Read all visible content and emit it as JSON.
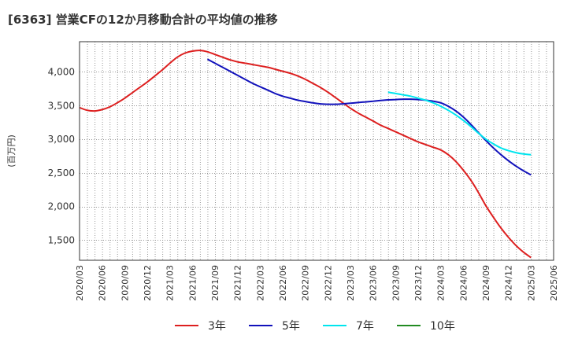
{
  "chart_data": {
    "type": "line",
    "title": "[6363]  営業CFの12か月移動合計の平均値の推移",
    "ylabel": "(百万円)",
    "xlabel": "",
    "ylim": [
      1200,
      4450
    ],
    "yticks": [
      1500,
      2000,
      2500,
      3000,
      3500,
      4000
    ],
    "ytick_labels": [
      "1,500",
      "2,000",
      "2,500",
      "3,000",
      "3,500",
      "4,000"
    ],
    "x_range": [
      "2020-03",
      "2025-06"
    ],
    "x_tick_labels": [
      "2020/03",
      "2020/06",
      "2020/09",
      "2020/12",
      "2021/03",
      "2021/06",
      "2021/09",
      "2021/12",
      "2022/03",
      "2022/06",
      "2022/09",
      "2022/12",
      "2023/03",
      "2023/06",
      "2023/09",
      "2023/12",
      "2024/03",
      "2024/06",
      "2024/09",
      "2024/12",
      "2025/03",
      "2025/06"
    ],
    "grid": true,
    "legend_position": "bottom",
    "series": [
      {
        "name": "3年",
        "color": "#dd1f1f",
        "points": [
          [
            "2020-03",
            3470
          ],
          [
            "2020-04",
            3430
          ],
          [
            "2020-05",
            3420
          ],
          [
            "2020-06",
            3440
          ],
          [
            "2020-07",
            3480
          ],
          [
            "2020-08",
            3540
          ],
          [
            "2020-09",
            3610
          ],
          [
            "2020-10",
            3690
          ],
          [
            "2020-11",
            3770
          ],
          [
            "2020-12",
            3850
          ],
          [
            "2021-01",
            3940
          ],
          [
            "2021-02",
            4030
          ],
          [
            "2021-03",
            4130
          ],
          [
            "2021-04",
            4220
          ],
          [
            "2021-05",
            4280
          ],
          [
            "2021-06",
            4310
          ],
          [
            "2021-07",
            4320
          ],
          [
            "2021-08",
            4300
          ],
          [
            "2021-09",
            4260
          ],
          [
            "2021-10",
            4220
          ],
          [
            "2021-11",
            4180
          ],
          [
            "2021-12",
            4150
          ],
          [
            "2022-01",
            4130
          ],
          [
            "2022-02",
            4110
          ],
          [
            "2022-03",
            4090
          ],
          [
            "2022-04",
            4070
          ],
          [
            "2022-05",
            4040
          ],
          [
            "2022-06",
            4010
          ],
          [
            "2022-07",
            3980
          ],
          [
            "2022-08",
            3940
          ],
          [
            "2022-09",
            3890
          ],
          [
            "2022-10",
            3830
          ],
          [
            "2022-11",
            3770
          ],
          [
            "2022-12",
            3700
          ],
          [
            "2023-01",
            3620
          ],
          [
            "2023-02",
            3540
          ],
          [
            "2023-03",
            3460
          ],
          [
            "2023-04",
            3390
          ],
          [
            "2023-05",
            3330
          ],
          [
            "2023-06",
            3270
          ],
          [
            "2023-07",
            3210
          ],
          [
            "2023-08",
            3160
          ],
          [
            "2023-09",
            3110
          ],
          [
            "2023-10",
            3060
          ],
          [
            "2023-11",
            3010
          ],
          [
            "2023-12",
            2960
          ],
          [
            "2024-01",
            2920
          ],
          [
            "2024-02",
            2880
          ],
          [
            "2024-03",
            2840
          ],
          [
            "2024-04",
            2770
          ],
          [
            "2024-05",
            2670
          ],
          [
            "2024-06",
            2540
          ],
          [
            "2024-07",
            2390
          ],
          [
            "2024-08",
            2210
          ],
          [
            "2024-09",
            2010
          ],
          [
            "2024-10",
            1840
          ],
          [
            "2024-11",
            1680
          ],
          [
            "2024-12",
            1540
          ],
          [
            "2025-01",
            1420
          ],
          [
            "2025-02",
            1320
          ],
          [
            "2025-03",
            1240
          ]
        ]
      },
      {
        "name": "5年",
        "color": "#1111bb",
        "points": [
          [
            "2021-08",
            4190
          ],
          [
            "2021-09",
            4130
          ],
          [
            "2021-10",
            4070
          ],
          [
            "2021-11",
            4010
          ],
          [
            "2021-12",
            3950
          ],
          [
            "2022-01",
            3890
          ],
          [
            "2022-02",
            3830
          ],
          [
            "2022-03",
            3780
          ],
          [
            "2022-04",
            3730
          ],
          [
            "2022-05",
            3680
          ],
          [
            "2022-06",
            3640
          ],
          [
            "2022-07",
            3610
          ],
          [
            "2022-08",
            3580
          ],
          [
            "2022-09",
            3560
          ],
          [
            "2022-10",
            3540
          ],
          [
            "2022-11",
            3525
          ],
          [
            "2022-12",
            3520
          ],
          [
            "2023-01",
            3520
          ],
          [
            "2023-02",
            3525
          ],
          [
            "2023-03",
            3535
          ],
          [
            "2023-04",
            3545
          ],
          [
            "2023-05",
            3555
          ],
          [
            "2023-06",
            3565
          ],
          [
            "2023-07",
            3575
          ],
          [
            "2023-08",
            3585
          ],
          [
            "2023-09",
            3590
          ],
          [
            "2023-10",
            3595
          ],
          [
            "2023-11",
            3595
          ],
          [
            "2023-12",
            3590
          ],
          [
            "2024-01",
            3580
          ],
          [
            "2024-02",
            3565
          ],
          [
            "2024-03",
            3540
          ],
          [
            "2024-04",
            3490
          ],
          [
            "2024-05",
            3420
          ],
          [
            "2024-06",
            3330
          ],
          [
            "2024-07",
            3220
          ],
          [
            "2024-08",
            3100
          ],
          [
            "2024-09",
            2980
          ],
          [
            "2024-10",
            2870
          ],
          [
            "2024-11",
            2770
          ],
          [
            "2024-12",
            2680
          ],
          [
            "2025-01",
            2600
          ],
          [
            "2025-02",
            2530
          ],
          [
            "2025-03",
            2470
          ]
        ]
      },
      {
        "name": "7年",
        "color": "#00e5ee",
        "points": [
          [
            "2023-08",
            3700
          ],
          [
            "2023-09",
            3680
          ],
          [
            "2023-10",
            3660
          ],
          [
            "2023-11",
            3640
          ],
          [
            "2023-12",
            3610
          ],
          [
            "2024-01",
            3580
          ],
          [
            "2024-02",
            3540
          ],
          [
            "2024-03",
            3490
          ],
          [
            "2024-04",
            3430
          ],
          [
            "2024-05",
            3360
          ],
          [
            "2024-06",
            3280
          ],
          [
            "2024-07",
            3190
          ],
          [
            "2024-08",
            3090
          ],
          [
            "2024-09",
            3000
          ],
          [
            "2024-10",
            2930
          ],
          [
            "2024-11",
            2870
          ],
          [
            "2024-12",
            2830
          ],
          [
            "2025-01",
            2800
          ],
          [
            "2025-02",
            2780
          ],
          [
            "2025-03",
            2770
          ]
        ]
      },
      {
        "name": "10年",
        "color": "#228b22",
        "points": []
      }
    ]
  }
}
